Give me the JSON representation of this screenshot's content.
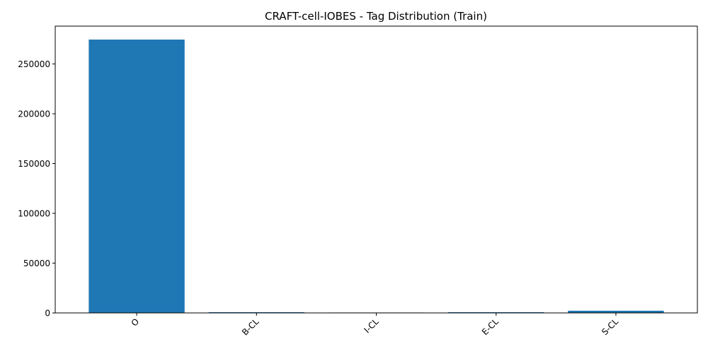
{
  "chart_data": {
    "type": "bar",
    "title": "CRAFT-cell-IOBES - Tag Distribution (Train)",
    "xlabel": "",
    "ylabel": "",
    "categories": [
      "O",
      "B-CL",
      "I-CL",
      "E-CL",
      "S-CL"
    ],
    "values": [
      274500,
      700,
      400,
      700,
      2200
    ],
    "ylim": [
      0,
      288000
    ],
    "yticks": [
      0,
      50000,
      100000,
      150000,
      200000,
      250000
    ],
    "ytick_labels": [
      "0",
      "50000",
      "100000",
      "150000",
      "200000",
      "250000"
    ],
    "bar_color": "#1f77b4",
    "grid": false,
    "legend": "none",
    "x_tick_rotation": "45 degrees"
  }
}
